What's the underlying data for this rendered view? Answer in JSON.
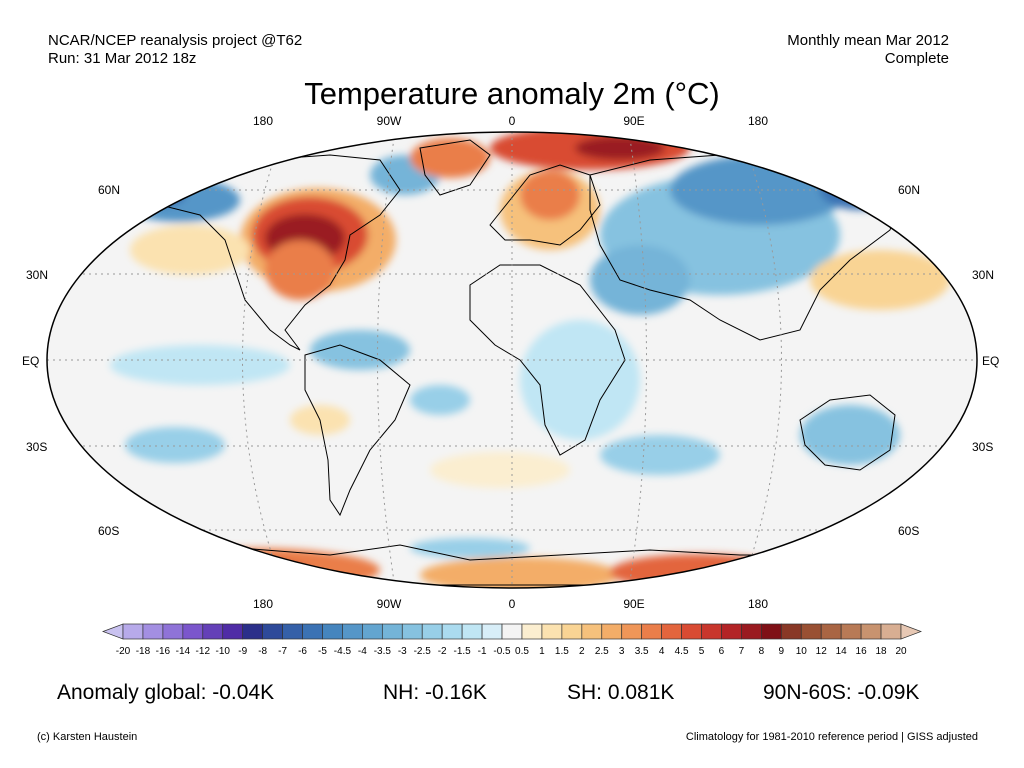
{
  "header": {
    "source_line1": "NCAR/NCEP reanalysis project @T62",
    "source_line2": "Run: 31 Mar 2012 18z",
    "period_line1": "Monthly mean Mar 2012",
    "period_line2": "Complete"
  },
  "title": "Temperature anomaly 2m (°C)",
  "map": {
    "lon_labels": [
      "180",
      "90W",
      "0",
      "90E",
      "180"
    ],
    "lat_labels": [
      "60N",
      "30N",
      "EQ",
      "30S",
      "60S"
    ],
    "ocean_color": "#f4f4f4",
    "coast_color": "#000000"
  },
  "colorbar": {
    "labels": [
      "-20",
      "-18",
      "-16",
      "-14",
      "-12",
      "-10",
      "-9",
      "-8",
      "-7",
      "-6",
      "-5",
      "-4.5",
      "-4",
      "-3.5",
      "-3",
      "-2.5",
      "-2",
      "-1.5",
      "-1",
      "-0.5",
      "0.5",
      "1",
      "1.5",
      "2",
      "2.5",
      "3",
      "3.5",
      "4",
      "4.5",
      "5",
      "6",
      "7",
      "8",
      "9",
      "10",
      "12",
      "14",
      "16",
      "18",
      "20"
    ],
    "colors": [
      "#c9c2f0",
      "#b7aaea",
      "#a38fe2",
      "#8f73d8",
      "#7b56cc",
      "#6440b8",
      "#4f2ca6",
      "#2b2f8a",
      "#2e4a9a",
      "#3560a8",
      "#3b72b4",
      "#4585be",
      "#5596c8",
      "#63a5d0",
      "#74b4d8",
      "#86c2e0",
      "#98cfe8",
      "#abdbef",
      "#c0e6f4",
      "#d8eef8",
      "#f4f4f4",
      "#fbeed0",
      "#fbe2b0",
      "#f9d494",
      "#f6c17c",
      "#f3ad68",
      "#ef9658",
      "#ea7e4a",
      "#e3653d",
      "#d94b33",
      "#c8362c",
      "#b32426",
      "#9a1a20",
      "#7f1016",
      "#893826",
      "#995033",
      "#a96543",
      "#b87a56",
      "#c8936f",
      "#d8ae92",
      "#e7c8b4"
    ]
  },
  "stats": {
    "global": "Anomaly global: -0.04K",
    "nh": "NH: -0.16K",
    "sh": "SH: 0.081K",
    "polar": "90N-60S: -0.09K"
  },
  "footer": {
    "credit": "(c) Karsten Haustein",
    "note": "Climatology for 1981-2010 reference period | GISS adjusted"
  }
}
